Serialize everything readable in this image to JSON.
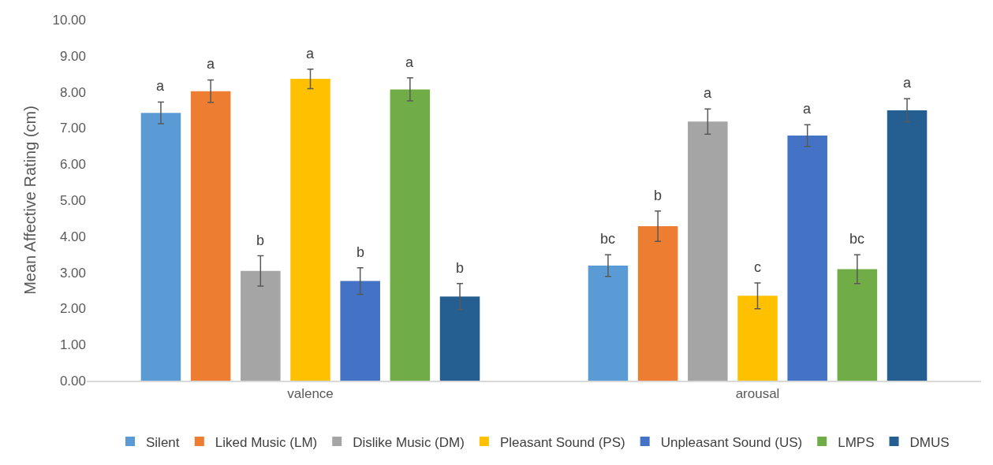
{
  "chart_data": {
    "type": "bar",
    "ylabel": "Mean Affective Rating (cm)",
    "categories": [
      "valence",
      "arousal"
    ],
    "series": [
      {
        "name": "Silent",
        "color": "#5b9bd5",
        "values": [
          7.42,
          3.19
        ],
        "errors": [
          0.3,
          0.3
        ],
        "value_labels": [
          "a",
          "bc"
        ]
      },
      {
        "name": "Liked Music (LM)",
        "color": "#ed7d31",
        "values": [
          8.02,
          4.28
        ],
        "errors": [
          0.31,
          0.42
        ],
        "value_labels": [
          "a",
          "b"
        ]
      },
      {
        "name": "Dislike Music (DM)",
        "color": "#a5a5a5",
        "values": [
          3.04,
          7.18
        ],
        "errors": [
          0.42,
          0.35
        ],
        "value_labels": [
          "b",
          "a"
        ]
      },
      {
        "name": "Pleasant Sound (PS)",
        "color": "#ffc000",
        "values": [
          8.36,
          2.35
        ],
        "errors": [
          0.27,
          0.36
        ],
        "value_labels": [
          "a",
          "c"
        ]
      },
      {
        "name": "Unpleasant Sound (US)",
        "color": "#4472c4",
        "values": [
          2.76,
          6.79
        ],
        "errors": [
          0.37,
          0.3
        ],
        "value_labels": [
          "b",
          "a"
        ]
      },
      {
        "name": "LMPS",
        "color": "#70ad47",
        "values": [
          8.07,
          3.09
        ],
        "errors": [
          0.32,
          0.4
        ],
        "value_labels": [
          "a",
          "bc"
        ]
      },
      {
        "name": "DMUS",
        "color": "#255e91",
        "values": [
          2.33,
          7.49
        ],
        "errors": [
          0.36,
          0.32
        ],
        "value_labels": [
          "b",
          "a"
        ]
      }
    ],
    "ylim": [
      0,
      10
    ],
    "yticks": [
      {
        "value": 0,
        "label": "0.00"
      },
      {
        "value": 1,
        "label": "1.00"
      },
      {
        "value": 2,
        "label": "2.00"
      },
      {
        "value": 3,
        "label": "3.00"
      },
      {
        "value": 4,
        "label": "4.00"
      },
      {
        "value": 5,
        "label": "5.00"
      },
      {
        "value": 6,
        "label": "6.00"
      },
      {
        "value": 7,
        "label": "7.00"
      },
      {
        "value": 8,
        "label": "8.00"
      },
      {
        "value": 9,
        "label": "9.00"
      },
      {
        "value": 10,
        "label": "10.00"
      }
    ],
    "grid": false,
    "legend": "bottom"
  }
}
